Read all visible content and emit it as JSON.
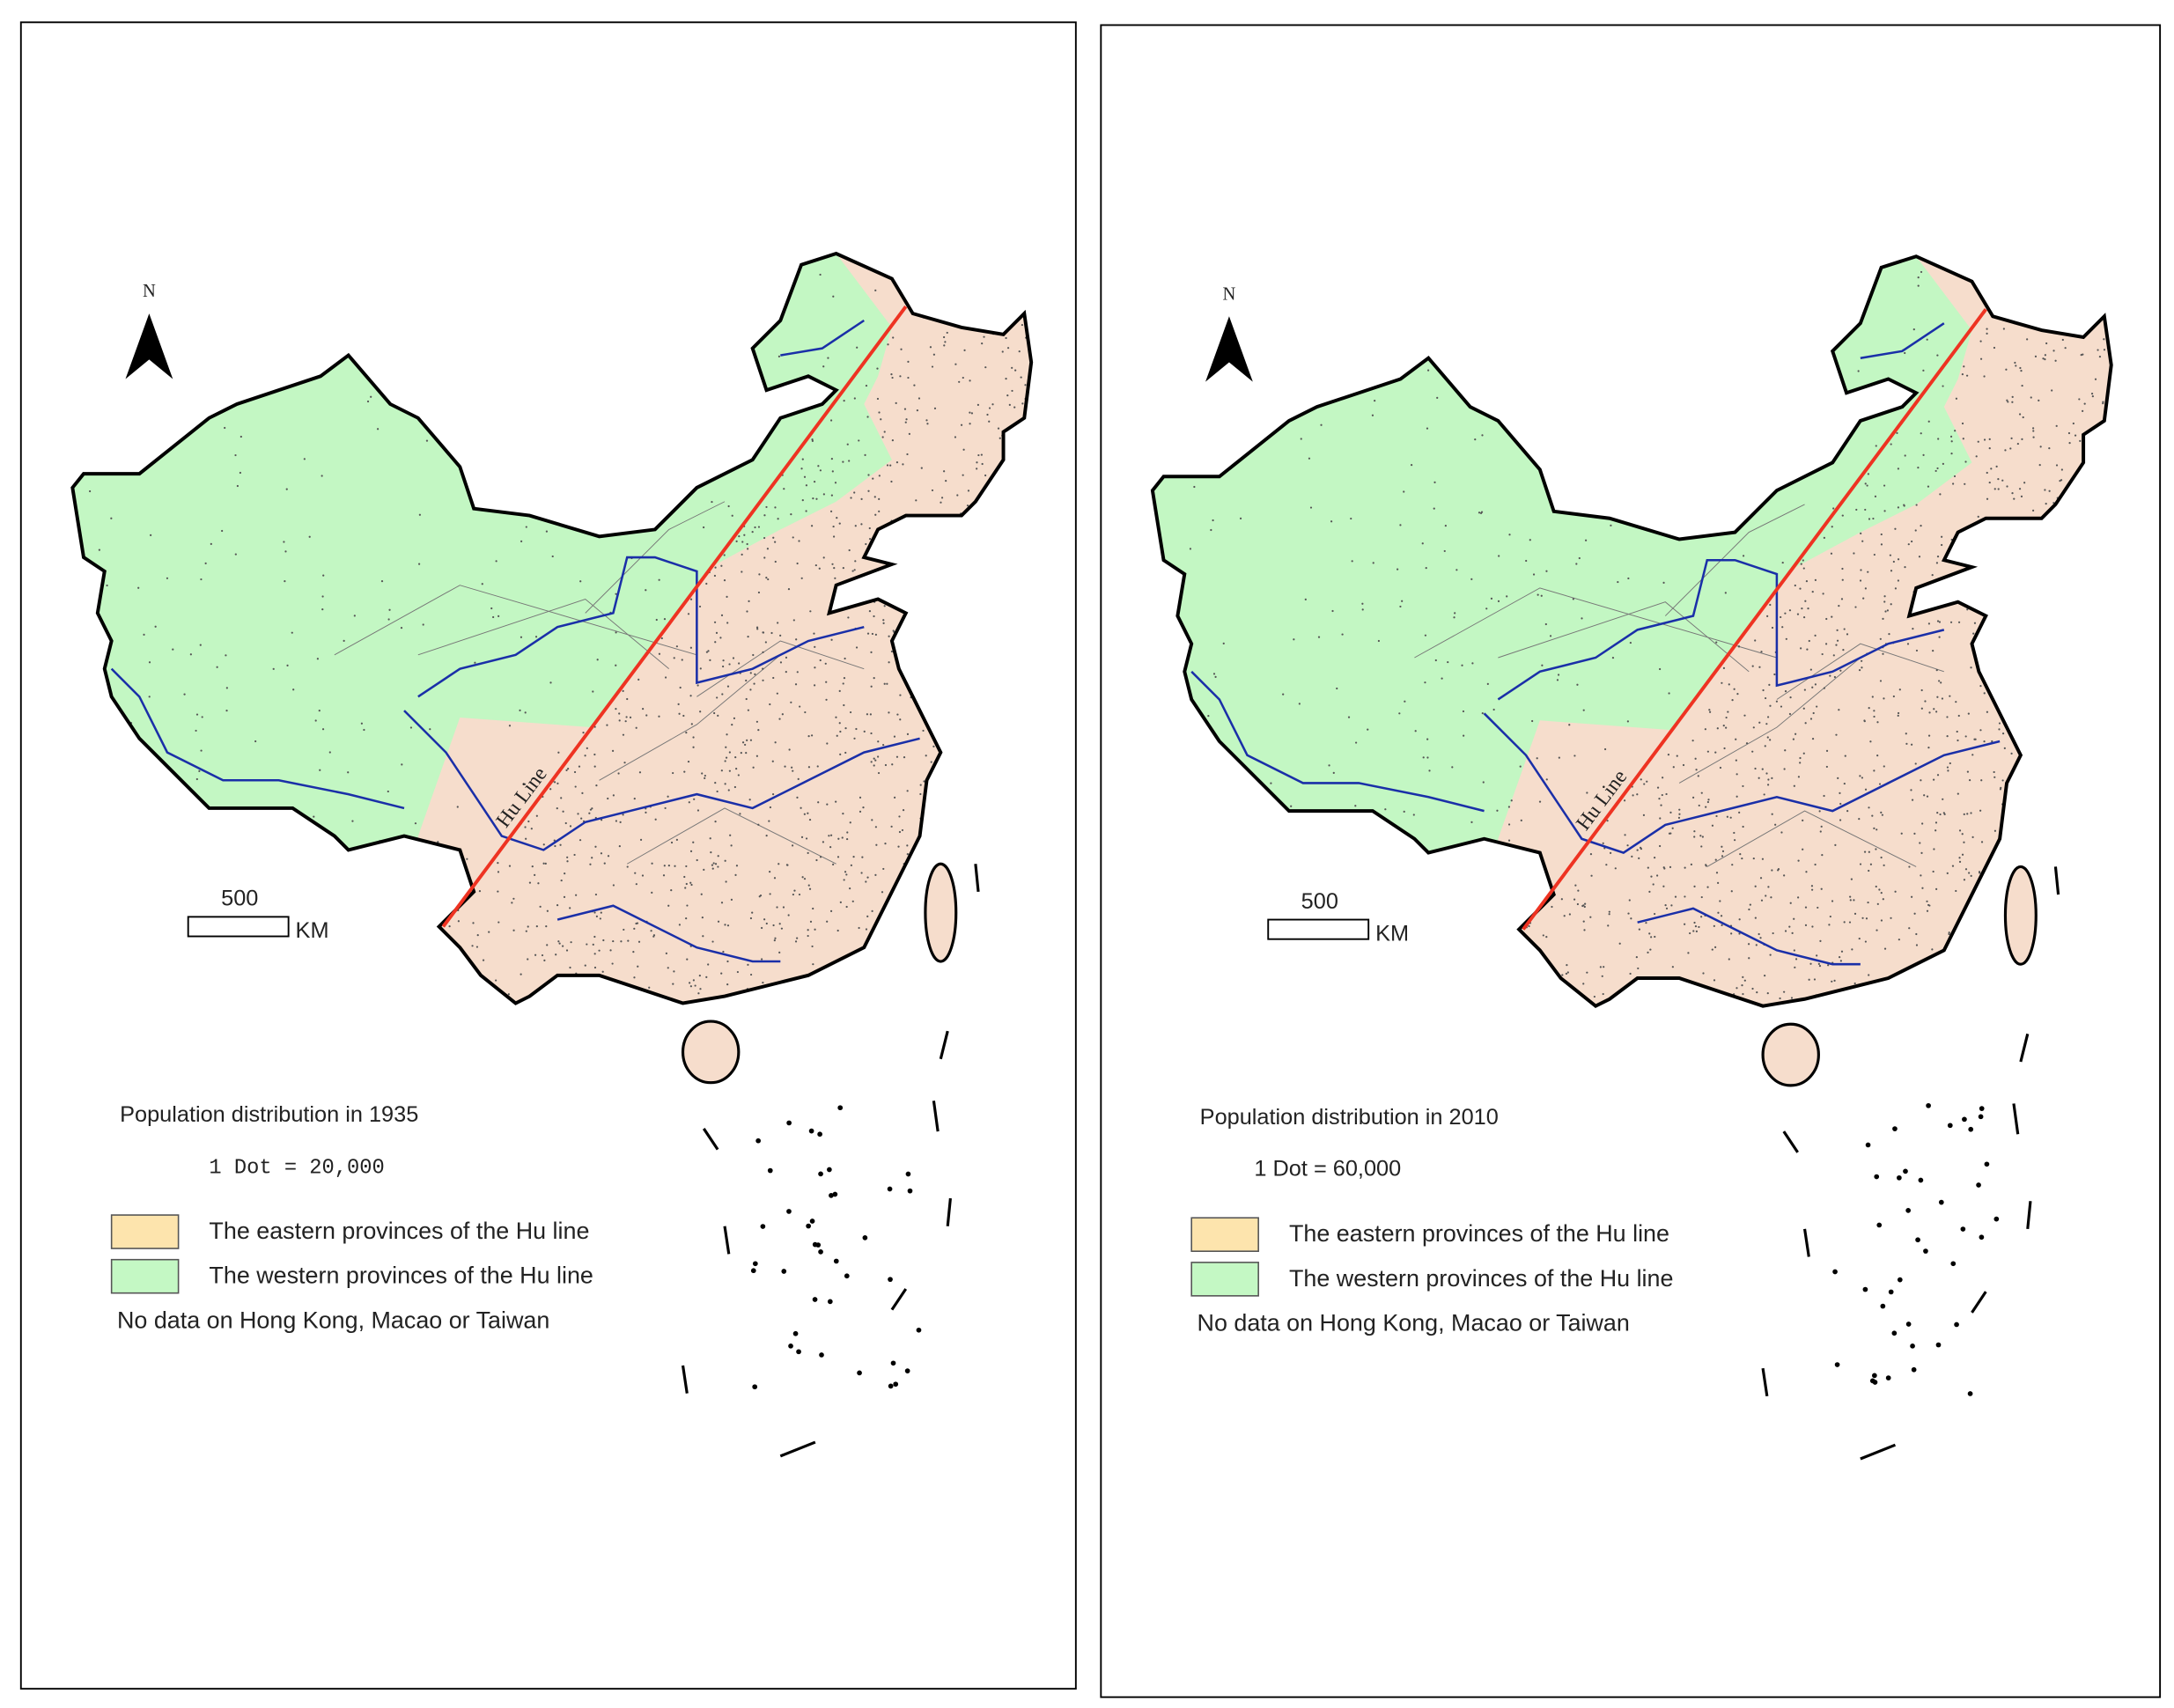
{
  "panels": [
    {
      "north": "N",
      "scale_value": "500",
      "scale_unit": "KM",
      "hu_line_label": "Hu Line",
      "title": "Population distribution in 1935",
      "dot_value": "1 Dot = 20,000",
      "legend": [
        {
          "label": "The eastern provinces of the Hu line",
          "color": "#fde4ad"
        },
        {
          "label": "The western provinces of the Hu line",
          "color": "#c4f8c4"
        }
      ],
      "note": "No data on Hong Kong, Macao or Taiwan"
    },
    {
      "north": "N",
      "scale_value": "500",
      "scale_unit": "KM",
      "hu_line_label": "Hu Line",
      "title": "Population distribution in 2010",
      "dot_value": "1 Dot = 60,000",
      "legend": [
        {
          "label": "The eastern provinces of the Hu line",
          "color": "#fde4ad"
        },
        {
          "label": "The western provinces of the Hu line",
          "color": "#c4f8c4"
        }
      ],
      "note": "No data on Hong Kong, Macao or Taiwan"
    }
  ]
}
